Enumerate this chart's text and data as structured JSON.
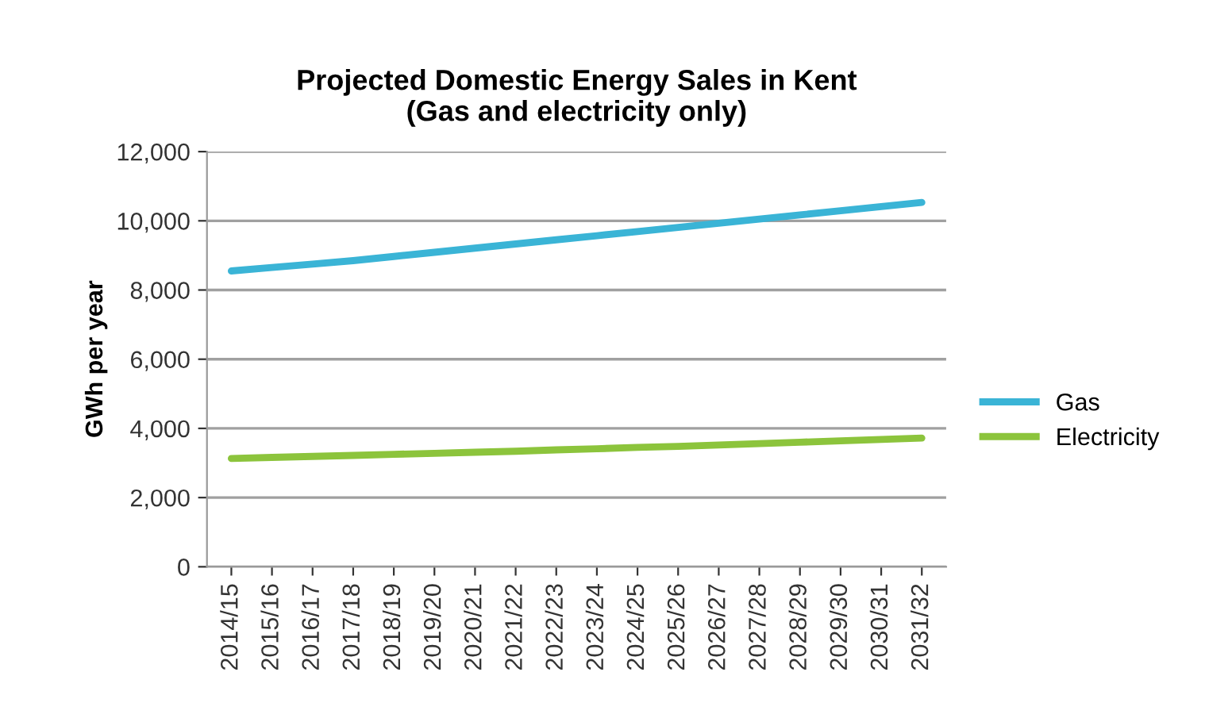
{
  "chart_data": {
    "type": "line",
    "title": "Projected Domestic Energy Sales in Kent\n(Gas and electricity only)",
    "ylabel": "GWh per year",
    "categories": [
      "2014/15",
      "2015/16",
      "2016/17",
      "2017/18",
      "2018/19",
      "2019/20",
      "2020/21",
      "2021/22",
      "2022/23",
      "2023/24",
      "2024/25",
      "2025/26",
      "2026/27",
      "2027/28",
      "2028/29",
      "2029/30",
      "2030/31",
      "2031/32"
    ],
    "series": [
      {
        "name": "Gas",
        "color": "#3ab4d6",
        "values": [
          8550,
          8650,
          8750,
          8850,
          8970,
          9090,
          9210,
          9330,
          9450,
          9570,
          9690,
          9810,
          9930,
          10050,
          10170,
          10290,
          10410,
          10530
        ]
      },
      {
        "name": "Electricity",
        "color": "#8cc43c",
        "values": [
          3130,
          3160,
          3190,
          3220,
          3250,
          3280,
          3310,
          3340,
          3380,
          3410,
          3450,
          3480,
          3520,
          3560,
          3600,
          3640,
          3680,
          3720
        ]
      }
    ],
    "ylim": [
      0,
      12000
    ],
    "yticks": [
      {
        "value": 0,
        "label": "0"
      },
      {
        "value": 2000,
        "label": "2,000"
      },
      {
        "value": 4000,
        "label": "4,000"
      },
      {
        "value": 6000,
        "label": "6,000"
      },
      {
        "value": 8000,
        "label": "8,000"
      },
      {
        "value": 10000,
        "label": "10,000"
      },
      {
        "value": 12000,
        "label": "12,000"
      }
    ],
    "grid": "y",
    "legend": "right",
    "marker": "none",
    "line_style": "solid"
  }
}
